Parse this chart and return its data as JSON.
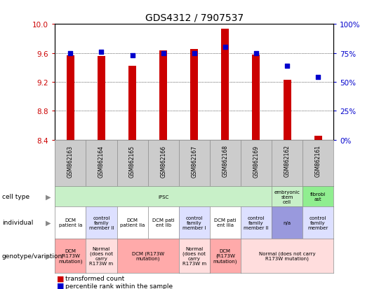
{
  "title": "GDS4312 / 7907537",
  "samples": [
    "GSM862163",
    "GSM862164",
    "GSM862165",
    "GSM862166",
    "GSM862167",
    "GSM862168",
    "GSM862169",
    "GSM862162",
    "GSM862161"
  ],
  "transformed_count": [
    9.57,
    9.56,
    9.42,
    9.63,
    9.65,
    9.93,
    9.58,
    9.23,
    8.46
  ],
  "percentile_rank": [
    75,
    76,
    73,
    75,
    75,
    80,
    75,
    64,
    54
  ],
  "ylim_left": [
    8.4,
    10.0
  ],
  "ylim_right": [
    0,
    100
  ],
  "yticks_left": [
    8.4,
    8.8,
    9.2,
    9.6,
    10.0
  ],
  "yticks_right": [
    0,
    25,
    50,
    75,
    100
  ],
  "bar_color": "#cc0000",
  "dot_color": "#0000cc",
  "bar_bottom": 8.4,
  "bar_width": 0.25,
  "cell_types": [
    {
      "label": "iPSC",
      "start": 0,
      "end": 7,
      "color": "#c8f0c8"
    },
    {
      "label": "embryonic\nstem\ncell",
      "start": 7,
      "end": 8,
      "color": "#c8f0c8"
    },
    {
      "label": "fibrobl\nast",
      "start": 8,
      "end": 9,
      "color": "#90ee90"
    }
  ],
  "individuals": [
    {
      "label": "DCM\npatient Ia",
      "start": 0,
      "end": 1,
      "color": "#ffffff"
    },
    {
      "label": "control\nfamily\nmember II",
      "start": 1,
      "end": 2,
      "color": "#dde0ff"
    },
    {
      "label": "DCM\npatient IIa",
      "start": 2,
      "end": 3,
      "color": "#ffffff"
    },
    {
      "label": "DCM pati\nent IIb",
      "start": 3,
      "end": 4,
      "color": "#ffffff"
    },
    {
      "label": "control\nfamily\nmember I",
      "start": 4,
      "end": 5,
      "color": "#dde0ff"
    },
    {
      "label": "DCM pati\nent IIIa",
      "start": 5,
      "end": 6,
      "color": "#ffffff"
    },
    {
      "label": "control\nfamily\nmember II",
      "start": 6,
      "end": 7,
      "color": "#dde0ff"
    },
    {
      "label": "n/a",
      "start": 7,
      "end": 8,
      "color": "#9999dd"
    },
    {
      "label": "control\nfamily\nmember",
      "start": 8,
      "end": 9,
      "color": "#dde0ff"
    }
  ],
  "genotypes": [
    {
      "label": "DCM\n(R173W\nmutation)",
      "start": 0,
      "end": 1,
      "color": "#ffaaaa"
    },
    {
      "label": "Normal\n(does not\ncarry\nR173W m",
      "start": 1,
      "end": 2,
      "color": "#ffdddd"
    },
    {
      "label": "DCM (R173W\nmutation)",
      "start": 2,
      "end": 4,
      "color": "#ffaaaa"
    },
    {
      "label": "Normal\n(does not\ncarry\nR173W m",
      "start": 4,
      "end": 5,
      "color": "#ffdddd"
    },
    {
      "label": "DCM\n(R173W\nmutation)",
      "start": 5,
      "end": 6,
      "color": "#ffaaaa"
    },
    {
      "label": "Normal (does not carry\nR173W mutation)",
      "start": 6,
      "end": 9,
      "color": "#ffdddd"
    }
  ],
  "row_labels": [
    "cell type",
    "individual",
    "genotype/variation"
  ],
  "background_color": "#ffffff",
  "grid_color": "#555555",
  "axis_label_color_left": "#cc0000",
  "axis_label_color_right": "#0000cc",
  "sample_box_color": "#cccccc",
  "sample_box_edge": "#888888"
}
